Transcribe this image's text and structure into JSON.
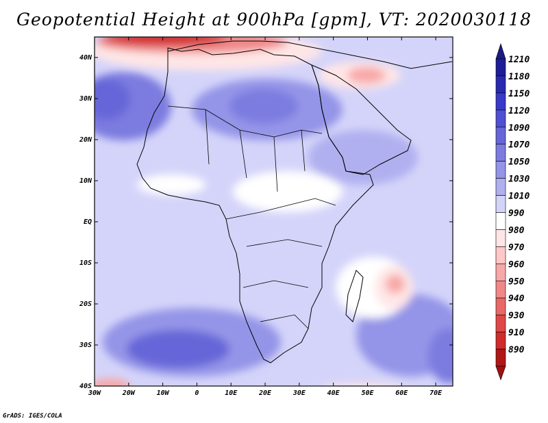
{
  "title": "Geopotential Height at 900hPa [gpm], VT: 2020030118",
  "credit": "GrADS: IGES/COLA",
  "lat_labels": [
    "40N",
    "30N",
    "20N",
    "10N",
    "EQ",
    "10S",
    "20S",
    "30S",
    "40S"
  ],
  "lon_labels": [
    "30W",
    "20W",
    "10W",
    "0",
    "10E",
    "20E",
    "30E",
    "40E",
    "50E",
    "60E",
    "70E"
  ],
  "colorbar": {
    "labels": [
      "1210",
      "1180",
      "1150",
      "1120",
      "1090",
      "1070",
      "1050",
      "1030",
      "1010",
      "990",
      "980",
      "970",
      "960",
      "950",
      "940",
      "930",
      "910",
      "890"
    ],
    "colors": [
      "#1e1e96",
      "#2a2ab0",
      "#3a3ac8",
      "#5050d2",
      "#6666d8",
      "#7c7ce0",
      "#9494e8",
      "#b0b0f0",
      "#d4d4fa",
      "#ffffff",
      "#ffe6e6",
      "#ffc8c8",
      "#f8a8a8",
      "#f08888",
      "#e86868",
      "#e04848",
      "#d02c2c",
      "#b01818"
    ]
  },
  "chart_data": {
    "type": "heatmap",
    "title": "Geopotential Height at 900hPa [gpm], VT: 2020030118",
    "variable": "Geopotential Height",
    "level_hPa": 900,
    "units": "gpm",
    "valid_time": "2020030118",
    "lon_range": [
      -30,
      75
    ],
    "lat_range": [
      -40,
      45
    ],
    "contour_levels": [
      890,
      910,
      930,
      940,
      950,
      960,
      970,
      980,
      990,
      1010,
      1030,
      1050,
      1070,
      1090,
      1120,
      1150,
      1180,
      1210
    ],
    "features": [
      {
        "name": "low over Mediterranean / North Africa coast",
        "approx_lon": -10,
        "approx_lat": 44,
        "approx_value": 930
      },
      {
        "name": "low over Middle East",
        "approx_lon": 47,
        "approx_lat": 34,
        "approx_value": 980
      },
      {
        "name": "low east of Madagascar",
        "approx_lon": 58,
        "approx_lat": -18,
        "approx_value": 980
      },
      {
        "name": "high over Sahara",
        "approx_lon": 15,
        "approx_lat": 27,
        "approx_value": 1070
      },
      {
        "name": "high over North Atlantic",
        "approx_lon": -25,
        "approx_lat": 30,
        "approx_value": 1070
      },
      {
        "name": "high over South Atlantic",
        "approx_lon": -5,
        "approx_lat": -32,
        "approx_value": 1090
      }
    ]
  }
}
